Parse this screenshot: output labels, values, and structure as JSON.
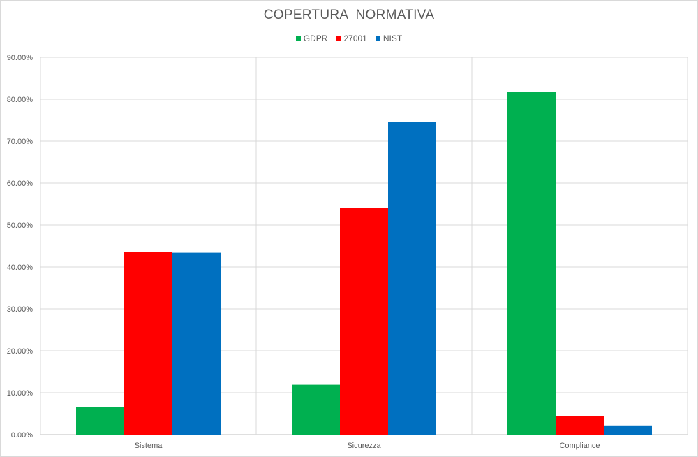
{
  "chart_data": {
    "type": "bar",
    "title": "COPERTURA  NORMATIVA",
    "xlabel": "",
    "ylabel": "",
    "categories": [
      "Sistema",
      "Sicurezza",
      "Compliance"
    ],
    "series": [
      {
        "name": "GDPR",
        "color": "#00b050",
        "values": [
          6.5,
          11.9,
          81.8
        ]
      },
      {
        "name": "27001",
        "color": "#ff0000",
        "values": [
          43.5,
          54.0,
          4.4
        ]
      },
      {
        "name": "NIST",
        "color": "#0070c0",
        "values": [
          43.4,
          74.5,
          2.2
        ]
      }
    ],
    "ylim": [
      0,
      90
    ],
    "yticks": [
      "0.00%",
      "10.00%",
      "20.00%",
      "30.00%",
      "40.00%",
      "50.00%",
      "60.00%",
      "70.00%",
      "80.00%",
      "90.00%"
    ],
    "grid": true,
    "legend_position": "top-center"
  }
}
